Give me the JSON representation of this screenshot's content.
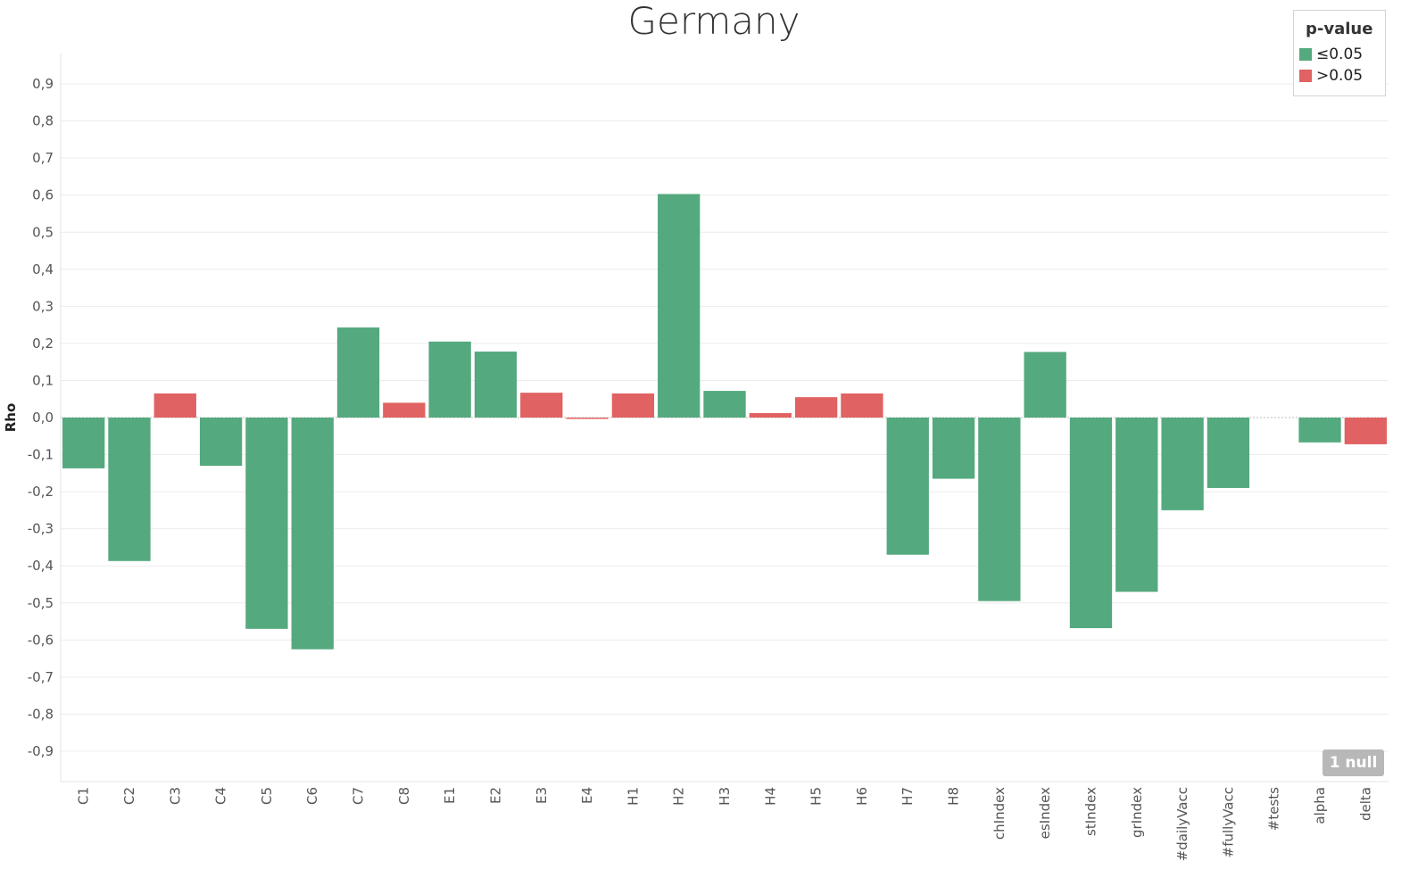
{
  "colors": {
    "significant": "#55a97e",
    "not_significant": "#e06262",
    "grid": "#ececec",
    "zero_line": "#bdbdbd"
  },
  "legend": {
    "title": "p-value",
    "items": [
      {
        "label": "≤0.05",
        "color": "#55a97e"
      },
      {
        "label": ">0.05",
        "color": "#e06262"
      }
    ]
  },
  "null_badge": "1 null",
  "chart_data": {
    "type": "bar",
    "title": "Germany",
    "xlabel": "",
    "ylabel": "Rho",
    "ylim": [
      -0.98,
      0.98
    ],
    "yticks": [
      -0.9,
      -0.8,
      -0.7,
      -0.6,
      -0.5,
      -0.4,
      -0.3,
      -0.2,
      -0.1,
      0.0,
      0.1,
      0.2,
      0.3,
      0.4,
      0.5,
      0.6,
      0.7,
      0.8,
      0.9
    ],
    "ytick_labels": [
      "-0,9",
      "-0,8",
      "-0,7",
      "-0,6",
      "-0,5",
      "-0,4",
      "-0,3",
      "-0,2",
      "-0,1",
      "0,0",
      "0,1",
      "0,2",
      "0,3",
      "0,4",
      "0,5",
      "0,6",
      "0,7",
      "0,8",
      "0,9"
    ],
    "grid": true,
    "legend_position": "top-right",
    "categories": [
      "C1",
      "C2",
      "C3",
      "C4",
      "C5",
      "C6",
      "C7",
      "C8",
      "E1",
      "E2",
      "E3",
      "E4",
      "H1",
      "H2",
      "H3",
      "H4",
      "H5",
      "H6",
      "H7",
      "H8",
      "chIndex",
      "esIndex",
      "stIndex",
      "grIndex",
      "#dailyVacc",
      "#fullyVacc",
      "#tests",
      "alpha",
      "delta"
    ],
    "values": [
      -0.137,
      -0.387,
      0.065,
      -0.13,
      -0.57,
      -0.625,
      0.243,
      0.04,
      0.205,
      0.178,
      0.067,
      -0.003,
      0.065,
      0.603,
      0.072,
      0.012,
      0.055,
      0.065,
      -0.37,
      -0.165,
      -0.495,
      0.177,
      -0.568,
      -0.47,
      -0.25,
      -0.19,
      null,
      -0.067,
      -0.072
    ],
    "significance": [
      "≤0.05",
      "≤0.05",
      ">0.05",
      "≤0.05",
      "≤0.05",
      "≤0.05",
      "≤0.05",
      ">0.05",
      "≤0.05",
      "≤0.05",
      ">0.05",
      ">0.05",
      ">0.05",
      "≤0.05",
      "≤0.05",
      ">0.05",
      ">0.05",
      ">0.05",
      "≤0.05",
      "≤0.05",
      "≤0.05",
      "≤0.05",
      "≤0.05",
      "≤0.05",
      "≤0.05",
      "≤0.05",
      null,
      "≤0.05",
      ">0.05"
    ]
  }
}
